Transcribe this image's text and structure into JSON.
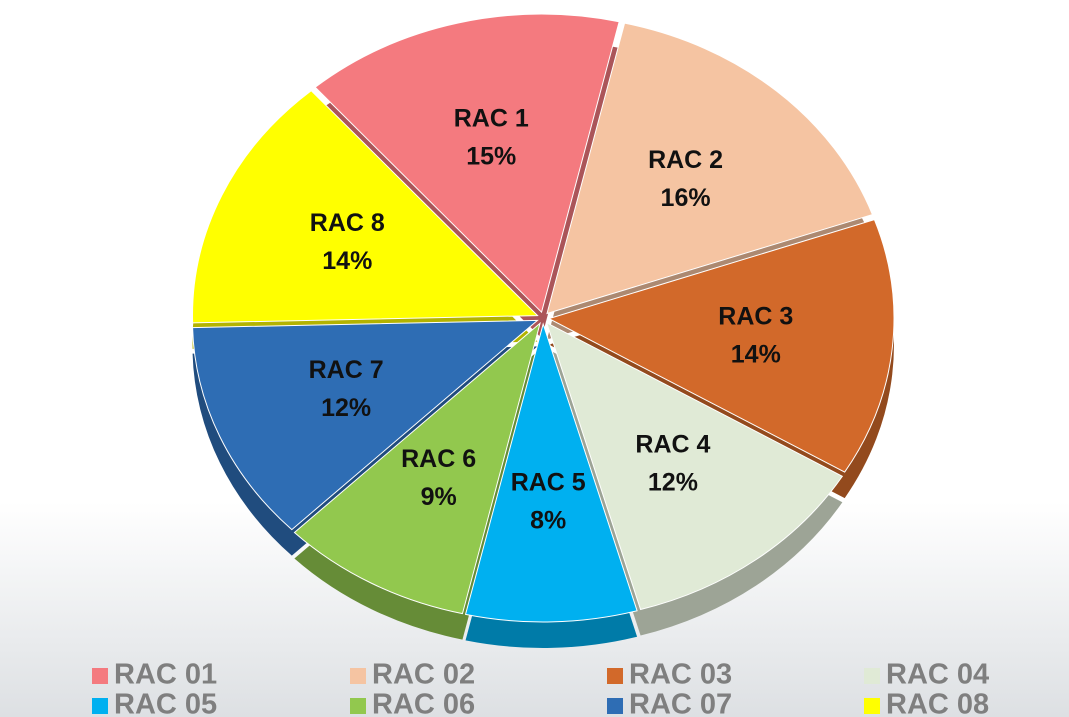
{
  "chart_data": {
    "type": "pie",
    "categories": [
      "RAC 01",
      "RAC 02",
      "RAC 03",
      "RAC 04",
      "RAC 05",
      "RAC 06",
      "RAC 07",
      "RAC 08"
    ],
    "slice_labels": [
      "RAC 1",
      "RAC 2",
      "RAC 3",
      "RAC 4",
      "RAC 5",
      "RAC 6",
      "RAC 7",
      "RAC 8"
    ],
    "values": [
      15,
      16,
      14,
      12,
      8,
      9,
      12,
      14
    ],
    "value_labels": [
      "15%",
      "16%",
      "14%",
      "12%",
      "8%",
      "9%",
      "12%",
      "14%"
    ],
    "colors": [
      "#f47a7f",
      "#f5c4a2",
      "#d2692a",
      "#e0ead6",
      "#00b0f0",
      "#92c84e",
      "#2e6db4",
      "#ffff00"
    ],
    "legend": "bottom"
  }
}
